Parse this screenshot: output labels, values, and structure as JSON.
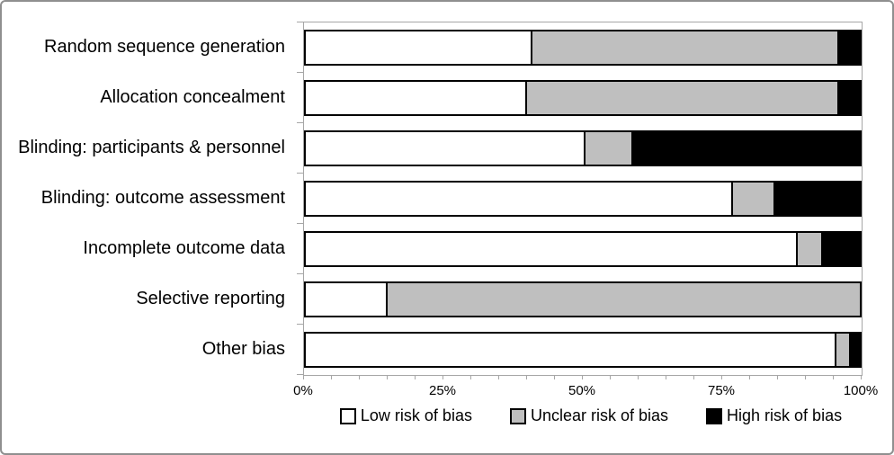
{
  "figure": {
    "background": "#ffffff",
    "outer_border_color": "#8f8f8f",
    "plot_border_color": "#a6a6a6",
    "segment_border_color": "#000000"
  },
  "chart_data": {
    "type": "bar",
    "orientation": "horizontal",
    "stacked": true,
    "title": "",
    "xlabel": "",
    "ylabel": "",
    "xlim": [
      0,
      100
    ],
    "x_tick_labels": [
      "0%",
      "25%",
      "50%",
      "75%",
      "100%"
    ],
    "x_tick_positions": [
      0,
      25,
      50,
      75,
      100
    ],
    "minor_tick_step": 5,
    "grid": false,
    "legend_position": "bottom",
    "categories": [
      "Random sequence generation",
      "Allocation concealment",
      "Blinding: participants & personnel",
      "Blinding: outcome assessment",
      "Incomplete outcome data",
      "Selective reporting",
      "Other bias"
    ],
    "series": [
      {
        "name": "Low risk of bias",
        "color": "#ffffff",
        "values": [
          41,
          40,
          50.5,
          77,
          88.5,
          15,
          95.5
        ]
      },
      {
        "name": "Unclear risk of bias",
        "color": "#bfbfbf",
        "values": [
          55,
          56,
          8.5,
          7.5,
          4.5,
          85,
          2.5
        ]
      },
      {
        "name": "High risk of bias",
        "color": "#000000",
        "values": [
          4,
          4,
          41,
          15.5,
          7,
          0,
          2
        ]
      }
    ]
  }
}
